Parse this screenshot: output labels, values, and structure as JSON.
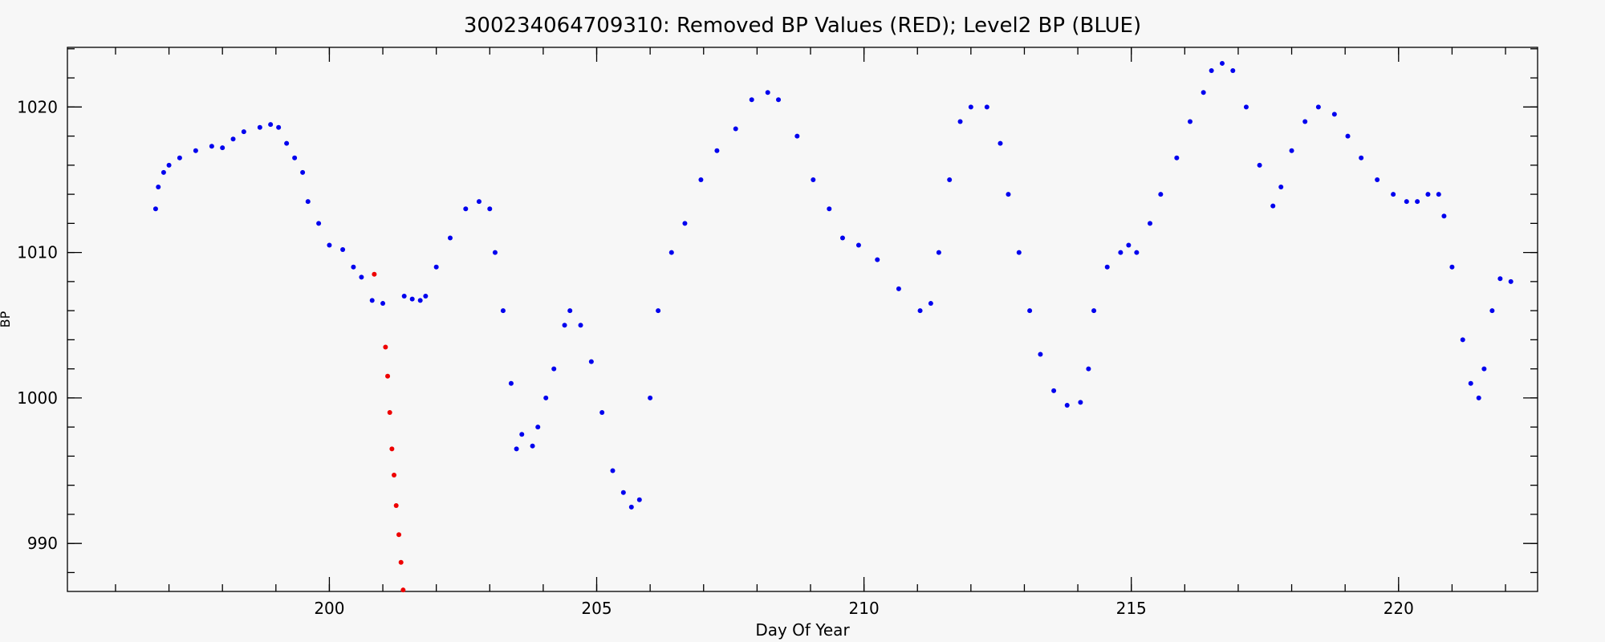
{
  "chart_data": {
    "type": "scatter",
    "title": "300234064709310: Removed BP Values (RED); Level2 BP (BLUE)",
    "x_label": "Day Of Year",
    "y_label": "BP",
    "xlim": [
      195.1,
      222.6
    ],
    "ylim": [
      986.7,
      1024.1
    ],
    "xticks": [
      200,
      205,
      210,
      215,
      220
    ],
    "yticks": [
      990,
      1000,
      1010,
      1020
    ],
    "series": [
      {
        "color": "#0000ee",
        "x": [
          196.75,
          196.8,
          196.9,
          197.0,
          197.2,
          197.5,
          197.8,
          198.0,
          198.2,
          198.4,
          198.7,
          198.9,
          199.05,
          199.2,
          199.35,
          199.5,
          199.6,
          199.8,
          200.0,
          200.25,
          200.45,
          200.6,
          200.8,
          201.0,
          201.4,
          201.55,
          201.7,
          201.8,
          202.0,
          202.26,
          202.55,
          202.8,
          203.0,
          203.1,
          203.25,
          203.4,
          203.5,
          203.6,
          203.8,
          203.9,
          204.05,
          204.2,
          204.4,
          204.5,
          204.7,
          204.9,
          205.1,
          205.3,
          205.5,
          205.65,
          205.8,
          206.0,
          206.15,
          206.4,
          206.65,
          206.95,
          207.25,
          207.6,
          207.9,
          208.2,
          208.4,
          208.75,
          209.05,
          209.35,
          209.6,
          209.9,
          210.25,
          210.65,
          211.05,
          211.25,
          211.4,
          211.6,
          211.8,
          212.0,
          212.3,
          212.55,
          212.7,
          212.9,
          213.1,
          213.3,
          213.55,
          213.8,
          214.05,
          214.2,
          214.3,
          214.55,
          214.8,
          214.95,
          215.1,
          215.35,
          215.55,
          215.85,
          216.1,
          216.35,
          216.5,
          216.7,
          216.9,
          217.15,
          217.4,
          217.65,
          217.8,
          218.0,
          218.25,
          218.5,
          218.8,
          219.05,
          219.3,
          219.6,
          219.9,
          220.15,
          220.35,
          220.55,
          220.75,
          220.85,
          221.0,
          221.2,
          221.35,
          221.5,
          221.6,
          221.75,
          221.9,
          222.1
        ],
        "values": [
          1013,
          1014.5,
          1015.5,
          1016,
          1016.5,
          1017,
          1017.3,
          1017.2,
          1017.8,
          1018.3,
          1018.6,
          1018.8,
          1018.6,
          1017.5,
          1016.5,
          1015.5,
          1013.5,
          1012,
          1010.5,
          1010.2,
          1009,
          1008.3,
          1006.7,
          1006.5,
          1007,
          1006.8,
          1006.7,
          1007,
          1009,
          1011,
          1013,
          1013.5,
          1013,
          1010,
          1006,
          1001,
          996.5,
          997.5,
          996.7,
          998,
          1000,
          1002,
          1005,
          1006,
          1005,
          1002.5,
          999,
          995,
          993.5,
          992.5,
          993,
          1000,
          1006,
          1010,
          1012,
          1015,
          1017,
          1018.5,
          1020.5,
          1021,
          1020.5,
          1018,
          1015,
          1013,
          1011,
          1010.5,
          1009.5,
          1007.5,
          1006,
          1006.5,
          1010,
          1015,
          1019,
          1020,
          1020,
          1017.5,
          1014,
          1010,
          1006,
          1003,
          1000.5,
          999.5,
          999.7,
          1002,
          1006,
          1009,
          1010,
          1010.5,
          1010,
          1012,
          1014,
          1016.5,
          1019,
          1021,
          1022.5,
          1023,
          1022.5,
          1020,
          1016,
          1013.2,
          1014.5,
          1017,
          1019,
          1020,
          1019.5,
          1018,
          1016.5,
          1015,
          1014,
          1013.5,
          1013.5,
          1014,
          1014,
          1012.5,
          1009,
          1004,
          1001,
          1000,
          1002,
          1006,
          1008.2,
          1008
        ]
      },
      {
        "color": "#ee0000",
        "x": [
          200.84,
          201.05,
          201.09,
          201.13,
          201.17,
          201.21,
          201.25,
          201.3,
          201.34,
          201.38
        ],
        "values": [
          1008.5,
          1003.5,
          1001.5,
          999,
          996.5,
          994.7,
          992.6,
          990.6,
          988.7,
          986.8
        ]
      }
    ]
  }
}
